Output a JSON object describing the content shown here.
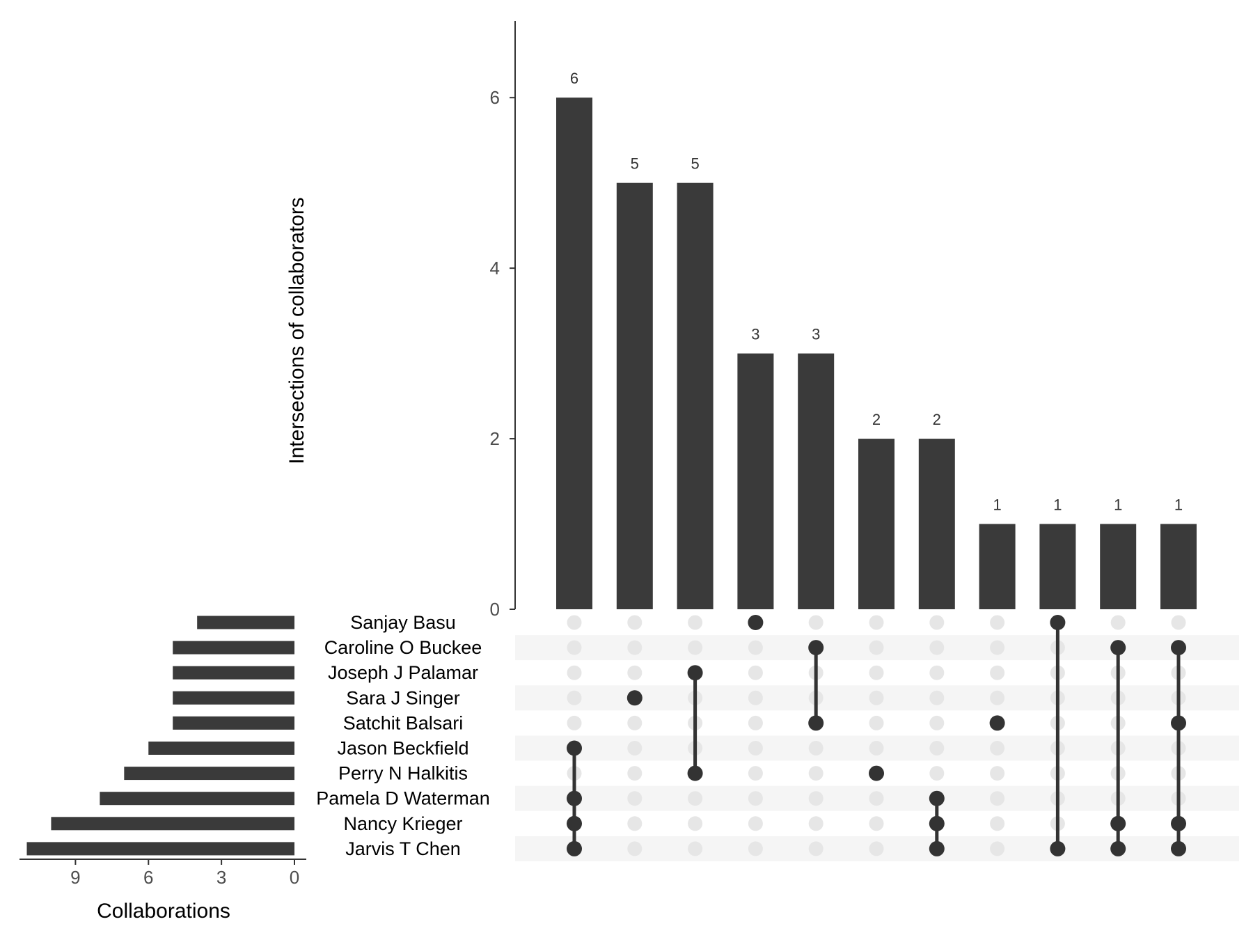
{
  "chart_data": {
    "type": "upset",
    "intersection_axis": {
      "title": "Intersections of collaborators",
      "ticks": [
        0,
        2,
        4,
        6
      ],
      "ylim": [
        0,
        6.9
      ]
    },
    "set_size_axis": {
      "title": "Collaborations",
      "ticks": [
        9,
        6,
        3,
        0
      ],
      "xlim": [
        0,
        11.3
      ]
    },
    "sets": [
      {
        "name": "Sanjay Basu",
        "size": 4
      },
      {
        "name": "Caroline O Buckee",
        "size": 5
      },
      {
        "name": "Joseph J Palamar",
        "size": 5
      },
      {
        "name": "Sara J Singer",
        "size": 5
      },
      {
        "name": "Satchit Balsari",
        "size": 5
      },
      {
        "name": "Jason Beckfield",
        "size": 6
      },
      {
        "name": "Perry N Halkitis",
        "size": 7
      },
      {
        "name": "Pamela D Waterman",
        "size": 8
      },
      {
        "name": "Nancy Krieger",
        "size": 10
      },
      {
        "name": "Jarvis T Chen",
        "size": 11
      }
    ],
    "intersections": [
      {
        "value": 6,
        "label": "6",
        "members": [
          "Jason Beckfield",
          "Pamela D Waterman",
          "Nancy Krieger",
          "Jarvis T Chen"
        ]
      },
      {
        "value": 5,
        "label": "5",
        "members": [
          "Sara J Singer"
        ]
      },
      {
        "value": 5,
        "label": "5",
        "members": [
          "Joseph J Palamar",
          "Perry N Halkitis"
        ]
      },
      {
        "value": 3,
        "label": "3",
        "members": [
          "Sanjay Basu"
        ]
      },
      {
        "value": 3,
        "label": "3",
        "members": [
          "Caroline O Buckee",
          "Satchit Balsari"
        ]
      },
      {
        "value": 2,
        "label": "2",
        "members": [
          "Perry N Halkitis"
        ]
      },
      {
        "value": 2,
        "label": "2",
        "members": [
          "Pamela D Waterman",
          "Nancy Krieger",
          "Jarvis T Chen"
        ]
      },
      {
        "value": 1,
        "label": "1",
        "members": [
          "Satchit Balsari"
        ]
      },
      {
        "value": 1,
        "label": "1",
        "members": [
          "Sanjay Basu",
          "Jarvis T Chen"
        ]
      },
      {
        "value": 1,
        "label": "1",
        "members": [
          "Caroline O Buckee",
          "Nancy Krieger",
          "Jarvis T Chen"
        ]
      },
      {
        "value": 1,
        "label": "1",
        "members": [
          "Caroline O Buckee",
          "Satchit Balsari",
          "Nancy Krieger",
          "Jarvis T Chen"
        ]
      }
    ],
    "colors": {
      "bar": "#3a3a3a",
      "dot_active": "#333333",
      "dot_inactive": "#e6e6e6",
      "stripe": "#f5f5f5",
      "axis": "#333333",
      "tick_text": "#4d4d4d"
    }
  }
}
